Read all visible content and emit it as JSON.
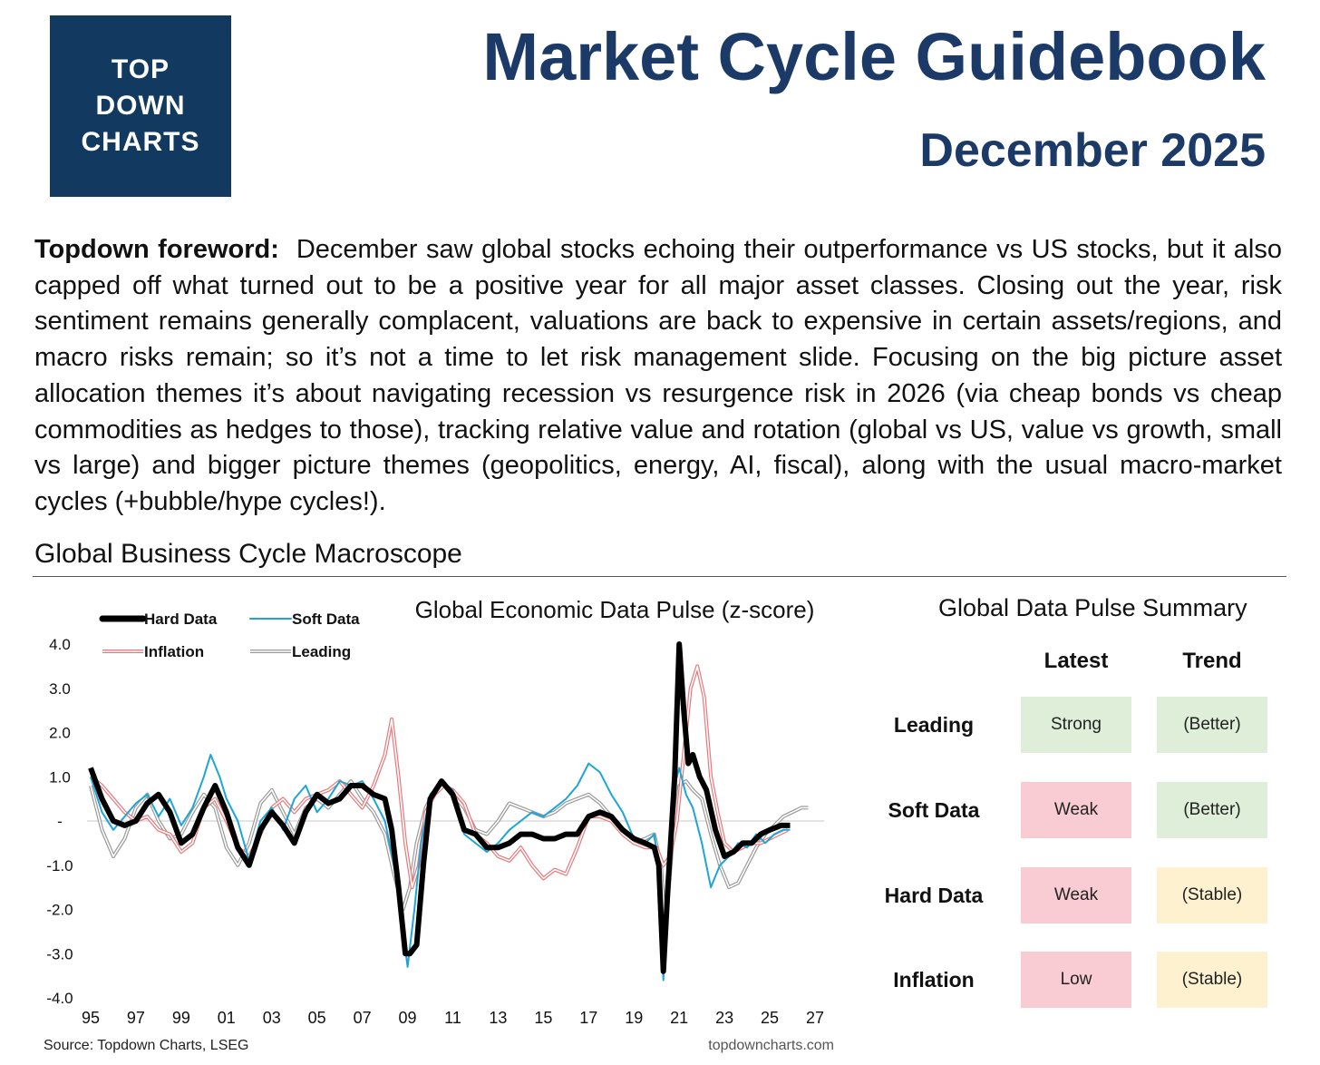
{
  "logo": {
    "lines": [
      "TOP",
      "DOWN",
      "CHARTS"
    ]
  },
  "header": {
    "title": "Market Cycle Guidebook",
    "subtitle": "December 2025"
  },
  "foreword": {
    "label": "Topdown foreword:",
    "text": "December saw global stocks echoing their outperformance vs US stocks, but it also capped off what turned out to be a positive year for all major asset classes.  Closing out the year, risk sentiment remains generally complacent, valuations are back to expensive in certain assets/regions, and macro risks remain; so it’s not a time to let risk management slide.  Focusing on the big picture asset allocation themes it’s about navigating recession vs resurgence risk in 2026 (via cheap bonds vs cheap commodities as hedges to those), tracking relative value and rotation (global vs US, value vs growth, small vs large) and bigger picture themes (geopolitics, energy, AI, fiscal), along with the usual macro-market cycles (+bubble/hype cycles!)."
  },
  "section_title": "Global Business Cycle Macroscope",
  "chart_data": {
    "type": "line",
    "title": "Global Economic Data Pulse (z-score)",
    "ylim": [
      -4.0,
      4.0
    ],
    "yticks": [
      "4.0",
      "3.0",
      "2.0",
      "1.0",
      "-",
      "-1.0",
      "-2.0",
      "-3.0",
      "-4.0"
    ],
    "xticks": [
      "95",
      "97",
      "99",
      "01",
      "03",
      "05",
      "07",
      "09",
      "11",
      "13",
      "15",
      "17",
      "19",
      "21",
      "23",
      "25",
      "27"
    ],
    "source": "Source: Topdown Charts, LSEG",
    "watermark": "topdowncharts.com",
    "legend": "top-left",
    "series": [
      {
        "name": "Hard Data",
        "color": "#000000",
        "style": "thick",
        "x": [
          1995.0,
          1995.5,
          1996.0,
          1996.5,
          1997.0,
          1997.5,
          1998.0,
          1998.5,
          1999.0,
          1999.5,
          2000.0,
          2000.5,
          2001.0,
          2001.5,
          2002.0,
          2002.5,
          2003.0,
          2003.5,
          2004.0,
          2004.5,
          2005.0,
          2005.5,
          2006.0,
          2006.5,
          2007.0,
          2007.5,
          2008.0,
          2008.3,
          2008.6,
          2008.9,
          2009.1,
          2009.4,
          2009.7,
          2010.0,
          2010.5,
          2011.0,
          2011.5,
          2012.0,
          2012.5,
          2013.0,
          2013.5,
          2014.0,
          2014.5,
          2015.0,
          2015.5,
          2016.0,
          2016.5,
          2017.0,
          2017.5,
          2018.0,
          2018.5,
          2019.0,
          2019.5,
          2019.9,
          2020.1,
          2020.3,
          2020.5,
          2020.8,
          2021.0,
          2021.2,
          2021.4,
          2021.6,
          2021.9,
          2022.2,
          2022.6,
          2023.0,
          2023.4,
          2023.8,
          2024.2,
          2024.6,
          2025.0,
          2025.5,
          2025.9
        ],
        "y": [
          1.2,
          0.5,
          0.0,
          -0.1,
          0.0,
          0.4,
          0.6,
          0.2,
          -0.5,
          -0.3,
          0.3,
          0.8,
          0.2,
          -0.6,
          -1.0,
          -0.2,
          0.2,
          -0.1,
          -0.5,
          0.2,
          0.6,
          0.4,
          0.5,
          0.8,
          0.8,
          0.6,
          0.5,
          -0.2,
          -1.5,
          -3.0,
          -3.0,
          -2.8,
          -1.0,
          0.5,
          0.9,
          0.6,
          -0.2,
          -0.3,
          -0.6,
          -0.6,
          -0.5,
          -0.3,
          -0.3,
          -0.4,
          -0.4,
          -0.3,
          -0.3,
          0.1,
          0.2,
          0.1,
          -0.2,
          -0.4,
          -0.5,
          -0.6,
          -1.0,
          -3.4,
          -1.5,
          1.0,
          4.0,
          2.5,
          1.3,
          1.5,
          1.0,
          0.7,
          -0.2,
          -0.8,
          -0.7,
          -0.5,
          -0.5,
          -0.3,
          -0.2,
          -0.1,
          -0.1
        ]
      },
      {
        "name": "Soft Data",
        "color": "#1ea5d8",
        "style": "thin",
        "x": [
          1995.0,
          1995.5,
          1996.0,
          1996.5,
          1997.0,
          1997.5,
          1998.0,
          1998.5,
          1999.0,
          1999.5,
          2000.0,
          2000.3,
          2000.7,
          2001.0,
          2001.5,
          2002.0,
          2002.5,
          2003.0,
          2003.5,
          2004.0,
          2004.5,
          2005.0,
          2005.5,
          2006.0,
          2006.5,
          2007.0,
          2007.5,
          2008.0,
          2008.4,
          2008.8,
          2009.0,
          2009.3,
          2009.6,
          2010.0,
          2010.5,
          2011.0,
          2011.5,
          2012.0,
          2012.5,
          2013.0,
          2013.5,
          2014.0,
          2014.5,
          2015.0,
          2015.5,
          2016.0,
          2016.5,
          2017.0,
          2017.5,
          2018.0,
          2018.5,
          2019.0,
          2019.5,
          2019.9,
          2020.1,
          2020.3,
          2020.5,
          2020.8,
          2021.0,
          2021.3,
          2021.6,
          2022.0,
          2022.4,
          2022.8,
          2023.2,
          2023.6,
          2024.0,
          2024.4,
          2024.8,
          2025.2,
          2025.6,
          2025.9
        ],
        "y": [
          1.0,
          0.2,
          -0.2,
          0.1,
          0.4,
          0.6,
          0.1,
          0.5,
          -0.1,
          0.3,
          1.0,
          1.5,
          1.0,
          0.5,
          0.0,
          -0.9,
          0.0,
          0.3,
          -0.2,
          0.5,
          0.8,
          0.2,
          0.5,
          0.9,
          0.8,
          0.9,
          0.5,
          0.0,
          -1.0,
          -2.5,
          -3.3,
          -2.0,
          -0.5,
          0.6,
          0.9,
          0.7,
          -0.3,
          -0.5,
          -0.7,
          -0.5,
          -0.2,
          0.0,
          0.2,
          0.1,
          0.3,
          0.5,
          0.8,
          1.3,
          1.1,
          0.6,
          0.2,
          -0.4,
          -0.5,
          -0.3,
          -1.0,
          -3.6,
          -1.0,
          0.8,
          1.2,
          0.6,
          0.3,
          -0.5,
          -1.5,
          -1.0,
          -0.8,
          -0.5,
          -0.6,
          -0.3,
          -0.5,
          -0.3,
          -0.2,
          -0.2
        ]
      },
      {
        "name": "Inflation",
        "color": "#e8787b",
        "style": "double",
        "x": [
          1995.0,
          1995.5,
          1996.0,
          1996.5,
          1997.0,
          1997.5,
          1998.0,
          1998.5,
          1999.0,
          1999.5,
          2000.0,
          2000.5,
          2001.0,
          2001.5,
          2002.0,
          2002.5,
          2003.0,
          2003.5,
          2004.0,
          2004.5,
          2005.0,
          2005.5,
          2006.0,
          2006.5,
          2007.0,
          2007.5,
          2008.0,
          2008.3,
          2008.6,
          2008.9,
          2009.2,
          2009.5,
          2009.8,
          2010.2,
          2010.6,
          2011.0,
          2011.5,
          2012.0,
          2012.5,
          2013.0,
          2013.5,
          2014.0,
          2014.5,
          2015.0,
          2015.5,
          2016.0,
          2016.5,
          2017.0,
          2017.5,
          2018.0,
          2018.5,
          2019.0,
          2019.5,
          2020.0,
          2020.3,
          2020.6,
          2020.9,
          2021.2,
          2021.5,
          2021.8,
          2022.1,
          2022.4,
          2022.7,
          2023.0,
          2023.4,
          2023.8,
          2024.2,
          2024.6,
          2025.0,
          2025.4,
          2025.8
        ],
        "y": [
          1.0,
          0.8,
          0.5,
          0.2,
          0.0,
          0.1,
          -0.2,
          -0.3,
          -0.7,
          -0.5,
          0.3,
          0.5,
          0.0,
          -0.6,
          -0.8,
          -0.3,
          0.3,
          0.5,
          0.2,
          0.5,
          0.6,
          0.7,
          0.9,
          0.6,
          0.3,
          0.8,
          1.5,
          2.3,
          1.0,
          -0.5,
          -1.5,
          -1.0,
          0.2,
          0.6,
          0.8,
          0.7,
          0.4,
          -0.3,
          -0.5,
          -0.8,
          -0.9,
          -0.6,
          -1.0,
          -1.3,
          -1.1,
          -1.2,
          -0.6,
          0.1,
          0.1,
          0.0,
          -0.3,
          -0.5,
          -0.6,
          -0.6,
          -1.0,
          -0.8,
          0.0,
          1.5,
          3.0,
          3.5,
          2.8,
          1.0,
          0.2,
          -0.5,
          -0.7,
          -0.6,
          -0.5,
          -0.5,
          -0.4,
          -0.3,
          -0.2
        ]
      },
      {
        "name": "Leading",
        "color": "#9a9a9a",
        "style": "double",
        "x": [
          1995.0,
          1995.5,
          1996.0,
          1996.5,
          1997.0,
          1997.5,
          1998.0,
          1998.5,
          1999.0,
          1999.5,
          2000.0,
          2000.5,
          2001.0,
          2001.5,
          2002.0,
          2002.5,
          2003.0,
          2003.5,
          2004.0,
          2004.5,
          2005.0,
          2005.5,
          2006.0,
          2006.5,
          2007.0,
          2007.5,
          2008.0,
          2008.4,
          2008.8,
          2009.1,
          2009.4,
          2009.8,
          2010.2,
          2010.6,
          2011.0,
          2011.5,
          2012.0,
          2012.5,
          2013.0,
          2013.5,
          2014.0,
          2014.5,
          2015.0,
          2015.5,
          2016.0,
          2016.5,
          2017.0,
          2017.5,
          2018.0,
          2018.5,
          2019.0,
          2019.5,
          2019.9,
          2020.2,
          2020.4,
          2020.7,
          2021.0,
          2021.3,
          2021.6,
          2022.0,
          2022.4,
          2022.8,
          2023.2,
          2023.6,
          2024.0,
          2024.4,
          2024.8,
          2025.2,
          2025.6,
          2026.0,
          2026.4,
          2026.7
        ],
        "y": [
          0.8,
          -0.2,
          -0.8,
          -0.4,
          0.3,
          0.6,
          0.0,
          -0.4,
          -0.3,
          0.2,
          0.6,
          0.3,
          -0.6,
          -1.0,
          -0.5,
          0.4,
          0.7,
          0.2,
          -0.3,
          0.3,
          0.5,
          0.3,
          0.6,
          0.9,
          0.5,
          0.2,
          -0.3,
          -1.2,
          -2.0,
          -1.5,
          -0.5,
          0.3,
          0.7,
          0.8,
          0.6,
          0.3,
          -0.2,
          -0.3,
          0.0,
          0.4,
          0.3,
          0.2,
          0.1,
          0.2,
          0.4,
          0.5,
          0.6,
          0.4,
          0.1,
          -0.3,
          -0.5,
          -0.4,
          -0.3,
          -1.0,
          -2.5,
          -0.5,
          0.8,
          0.9,
          0.7,
          0.5,
          -0.3,
          -1.0,
          -1.5,
          -1.4,
          -1.0,
          -0.6,
          -0.3,
          -0.1,
          0.1,
          0.2,
          0.3,
          0.3
        ]
      }
    ]
  },
  "summary": {
    "title": "Global Data Pulse Summary",
    "columns": [
      "Latest",
      "Trend"
    ],
    "rows": [
      {
        "label": "Leading",
        "latest": "Strong",
        "latest_color": "green",
        "trend": "(Better)",
        "trend_color": "green"
      },
      {
        "label": "Soft Data",
        "latest": "Weak",
        "latest_color": "red",
        "trend": "(Better)",
        "trend_color": "green"
      },
      {
        "label": "Hard Data",
        "latest": "Weak",
        "latest_color": "red",
        "trend": "(Stable)",
        "trend_color": "yellow"
      },
      {
        "label": "Inflation",
        "latest": "Low",
        "latest_color": "red",
        "trend": "(Stable)",
        "trend_color": "yellow"
      }
    ]
  }
}
